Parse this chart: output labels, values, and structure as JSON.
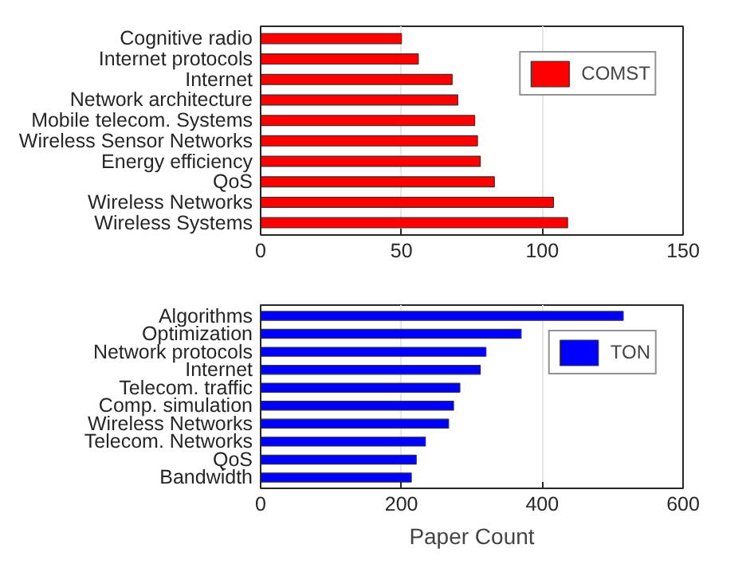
{
  "chart_data": [
    {
      "type": "bar",
      "orientation": "horizontal",
      "categories": [
        "Cognitive radio",
        "Internet protocols",
        "Internet",
        "Network architecture",
        "Mobile telecom. Systems",
        "Wireless Sensor Networks",
        "Energy efficiency",
        "QoS",
        "Wireless Networks",
        "Wireless Systems"
      ],
      "series": [
        {
          "name": "COMST",
          "color": "#ff0000",
          "values": [
            50,
            56,
            68,
            70,
            76,
            77,
            78,
            83,
            104,
            109
          ]
        }
      ],
      "xlim": [
        0,
        150
      ],
      "xticks": [
        0,
        50,
        100,
        150
      ],
      "grid": "x",
      "legend": "top right"
    },
    {
      "type": "bar",
      "orientation": "horizontal",
      "xlabel": "Paper Count",
      "categories": [
        "Algorithms",
        "Optimization",
        "Network protocols",
        "Internet",
        "Telecom. traffic",
        "Comp. simulation",
        "Wireless Networks",
        "Telecom. Networks",
        "QoS",
        "Bandwidth"
      ],
      "series": [
        {
          "name": "TON",
          "color": "#0000ff",
          "values": [
            515,
            370,
            320,
            312,
            283,
            274,
            267,
            234,
            221,
            214
          ]
        }
      ],
      "xlim": [
        0,
        600
      ],
      "xticks": [
        0,
        200,
        400,
        600
      ],
      "grid": "x",
      "legend": "top right"
    }
  ]
}
